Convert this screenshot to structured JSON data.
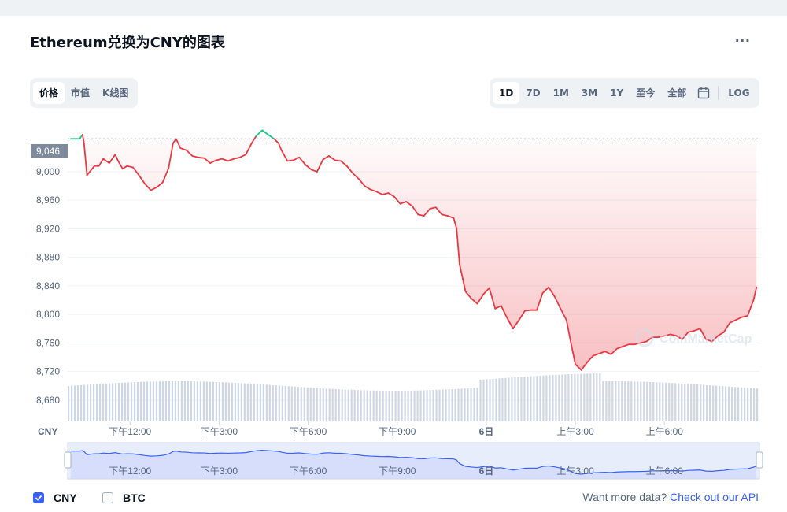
{
  "title": "Ethereum兑换为CNY的图表",
  "more_label": "...",
  "metric_tabs": [
    {
      "label": "价格",
      "active": true
    },
    {
      "label": "市值",
      "active": false
    },
    {
      "label": "K线图",
      "active": false
    }
  ],
  "range_tabs": [
    {
      "label": "1D",
      "active": true
    },
    {
      "label": "7D",
      "active": false
    },
    {
      "label": "1M",
      "active": false
    },
    {
      "label": "3M",
      "active": false
    },
    {
      "label": "1Y",
      "active": false
    },
    {
      "label": "至今",
      "active": false
    },
    {
      "label": "全部",
      "active": false
    }
  ],
  "calendar_icon": "calendar-icon",
  "log_label": "LOG",
  "currency_label": "CNY",
  "watermark": "CoinMarketCap",
  "current_price_label": "9,046",
  "colors": {
    "up": "#16c784",
    "down": "#ea3943",
    "nav_line": "#3861fb",
    "volume": "#cfd6e4",
    "accent": "#3861fb"
  },
  "footer": {
    "checks": [
      {
        "label": "CNY",
        "checked": true
      },
      {
        "label": "BTC",
        "checked": false
      }
    ],
    "api_text": "Want more data?",
    "api_link": "Check out our API"
  },
  "chart_data": {
    "type": "line",
    "reference_value": 9046,
    "ylim": [
      8650,
      9075
    ],
    "y_ticks": [
      9000,
      8960,
      8920,
      8880,
      8840,
      8800,
      8760,
      8720,
      8680
    ],
    "y_tick_labels": [
      "9,000",
      "8,960",
      "8,920",
      "8,880",
      "8,840",
      "8,800",
      "8,760",
      "8,720",
      "8,680"
    ],
    "x_labels": [
      {
        "hour": 2.0,
        "label": "下午12:00"
      },
      {
        "hour": 5.0,
        "label": "下午3:00"
      },
      {
        "hour": 8.0,
        "label": "下午6:00"
      },
      {
        "hour": 11.0,
        "label": "下午9:00"
      },
      {
        "hour": 14.0,
        "label": "6日"
      },
      {
        "hour": 17.0,
        "label": "上午3:00"
      },
      {
        "hour": 20.0,
        "label": "上午6:00"
      }
    ],
    "x_range_hours": [
      -0.1,
      23.2
    ],
    "series": [
      {
        "x": [
          0,
          0.3,
          0.4,
          0.45,
          0.55,
          0.8,
          0.95,
          1.1,
          1.3,
          1.5,
          1.6,
          1.75,
          1.9,
          2.1,
          2.3,
          2.5,
          2.7,
          2.9,
          3.1,
          3.3,
          3.45,
          3.55,
          3.7,
          3.9,
          4.1,
          4.3,
          4.5,
          4.7,
          4.9,
          5.1,
          5.3,
          5.5,
          5.7,
          5.9,
          6.1,
          6.25,
          6.45,
          6.65,
          6.85,
          7.0,
          7.1,
          7.3,
          7.5,
          7.7,
          7.9,
          8.1,
          8.3,
          8.5,
          8.7,
          8.9,
          9.1,
          9.3,
          9.5,
          9.7,
          9.9,
          10.1,
          10.3,
          10.5,
          10.7,
          10.9,
          11.1,
          11.3,
          11.5,
          11.7,
          11.9,
          12.1,
          12.3,
          12.5,
          12.7,
          12.9,
          13.0,
          13.1,
          13.3,
          13.5,
          13.7,
          13.9,
          14.1,
          14.3,
          14.5,
          14.7,
          14.9,
          15.1,
          15.3,
          15.5,
          15.7,
          15.9,
          16.1,
          16.3,
          16.5,
          16.7,
          16.85,
          17.0,
          17.2,
          17.4,
          17.6,
          17.8,
          18.0,
          18.2,
          18.4,
          18.6,
          18.8,
          19.0,
          19.2,
          19.4,
          19.6,
          19.8,
          20.0,
          20.2,
          20.4,
          20.6,
          20.8,
          21.0,
          21.2,
          21.4,
          21.6,
          21.8,
          22.0,
          22.2,
          22.4,
          22.6,
          22.8,
          23.0,
          23.1
        ],
        "y": [
          9046,
          9046,
          9052,
          9040,
          8995,
          9008,
          9008,
          9018,
          9012,
          9024,
          9015,
          9004,
          9008,
          9006,
          8995,
          8983,
          8974,
          8978,
          8985,
          9005,
          9040,
          9046,
          9033,
          9030,
          9022,
          9020,
          9019,
          9012,
          9016,
          9018,
          9015,
          9018,
          9020,
          9024,
          9040,
          9050,
          9058,
          9052,
          9046,
          9040,
          9030,
          9015,
          9016,
          9020,
          9010,
          9003,
          9000,
          9017,
          9022,
          9016,
          9015,
          9008,
          8998,
          8990,
          8980,
          8975,
          8972,
          8968,
          8970,
          8965,
          8955,
          8958,
          8952,
          8940,
          8938,
          8948,
          8950,
          8940,
          8938,
          8935,
          8920,
          8870,
          8832,
          8822,
          8815,
          8828,
          8837,
          8808,
          8812,
          8795,
          8780,
          8792,
          8805,
          8806,
          8806,
          8830,
          8838,
          8825,
          8808,
          8792,
          8760,
          8730,
          8722,
          8733,
          8742,
          8745,
          8748,
          8744,
          8752,
          8755,
          8758,
          8758,
          8760,
          8762,
          8768,
          8768,
          8770,
          8772,
          8770,
          8765,
          8775,
          8777,
          8780,
          8765,
          8762,
          8770,
          8775,
          8788,
          8792,
          8796,
          8798,
          8820,
          8838
        ]
      }
    ],
    "volume_level": 0.15,
    "navigator_visible": true
  }
}
